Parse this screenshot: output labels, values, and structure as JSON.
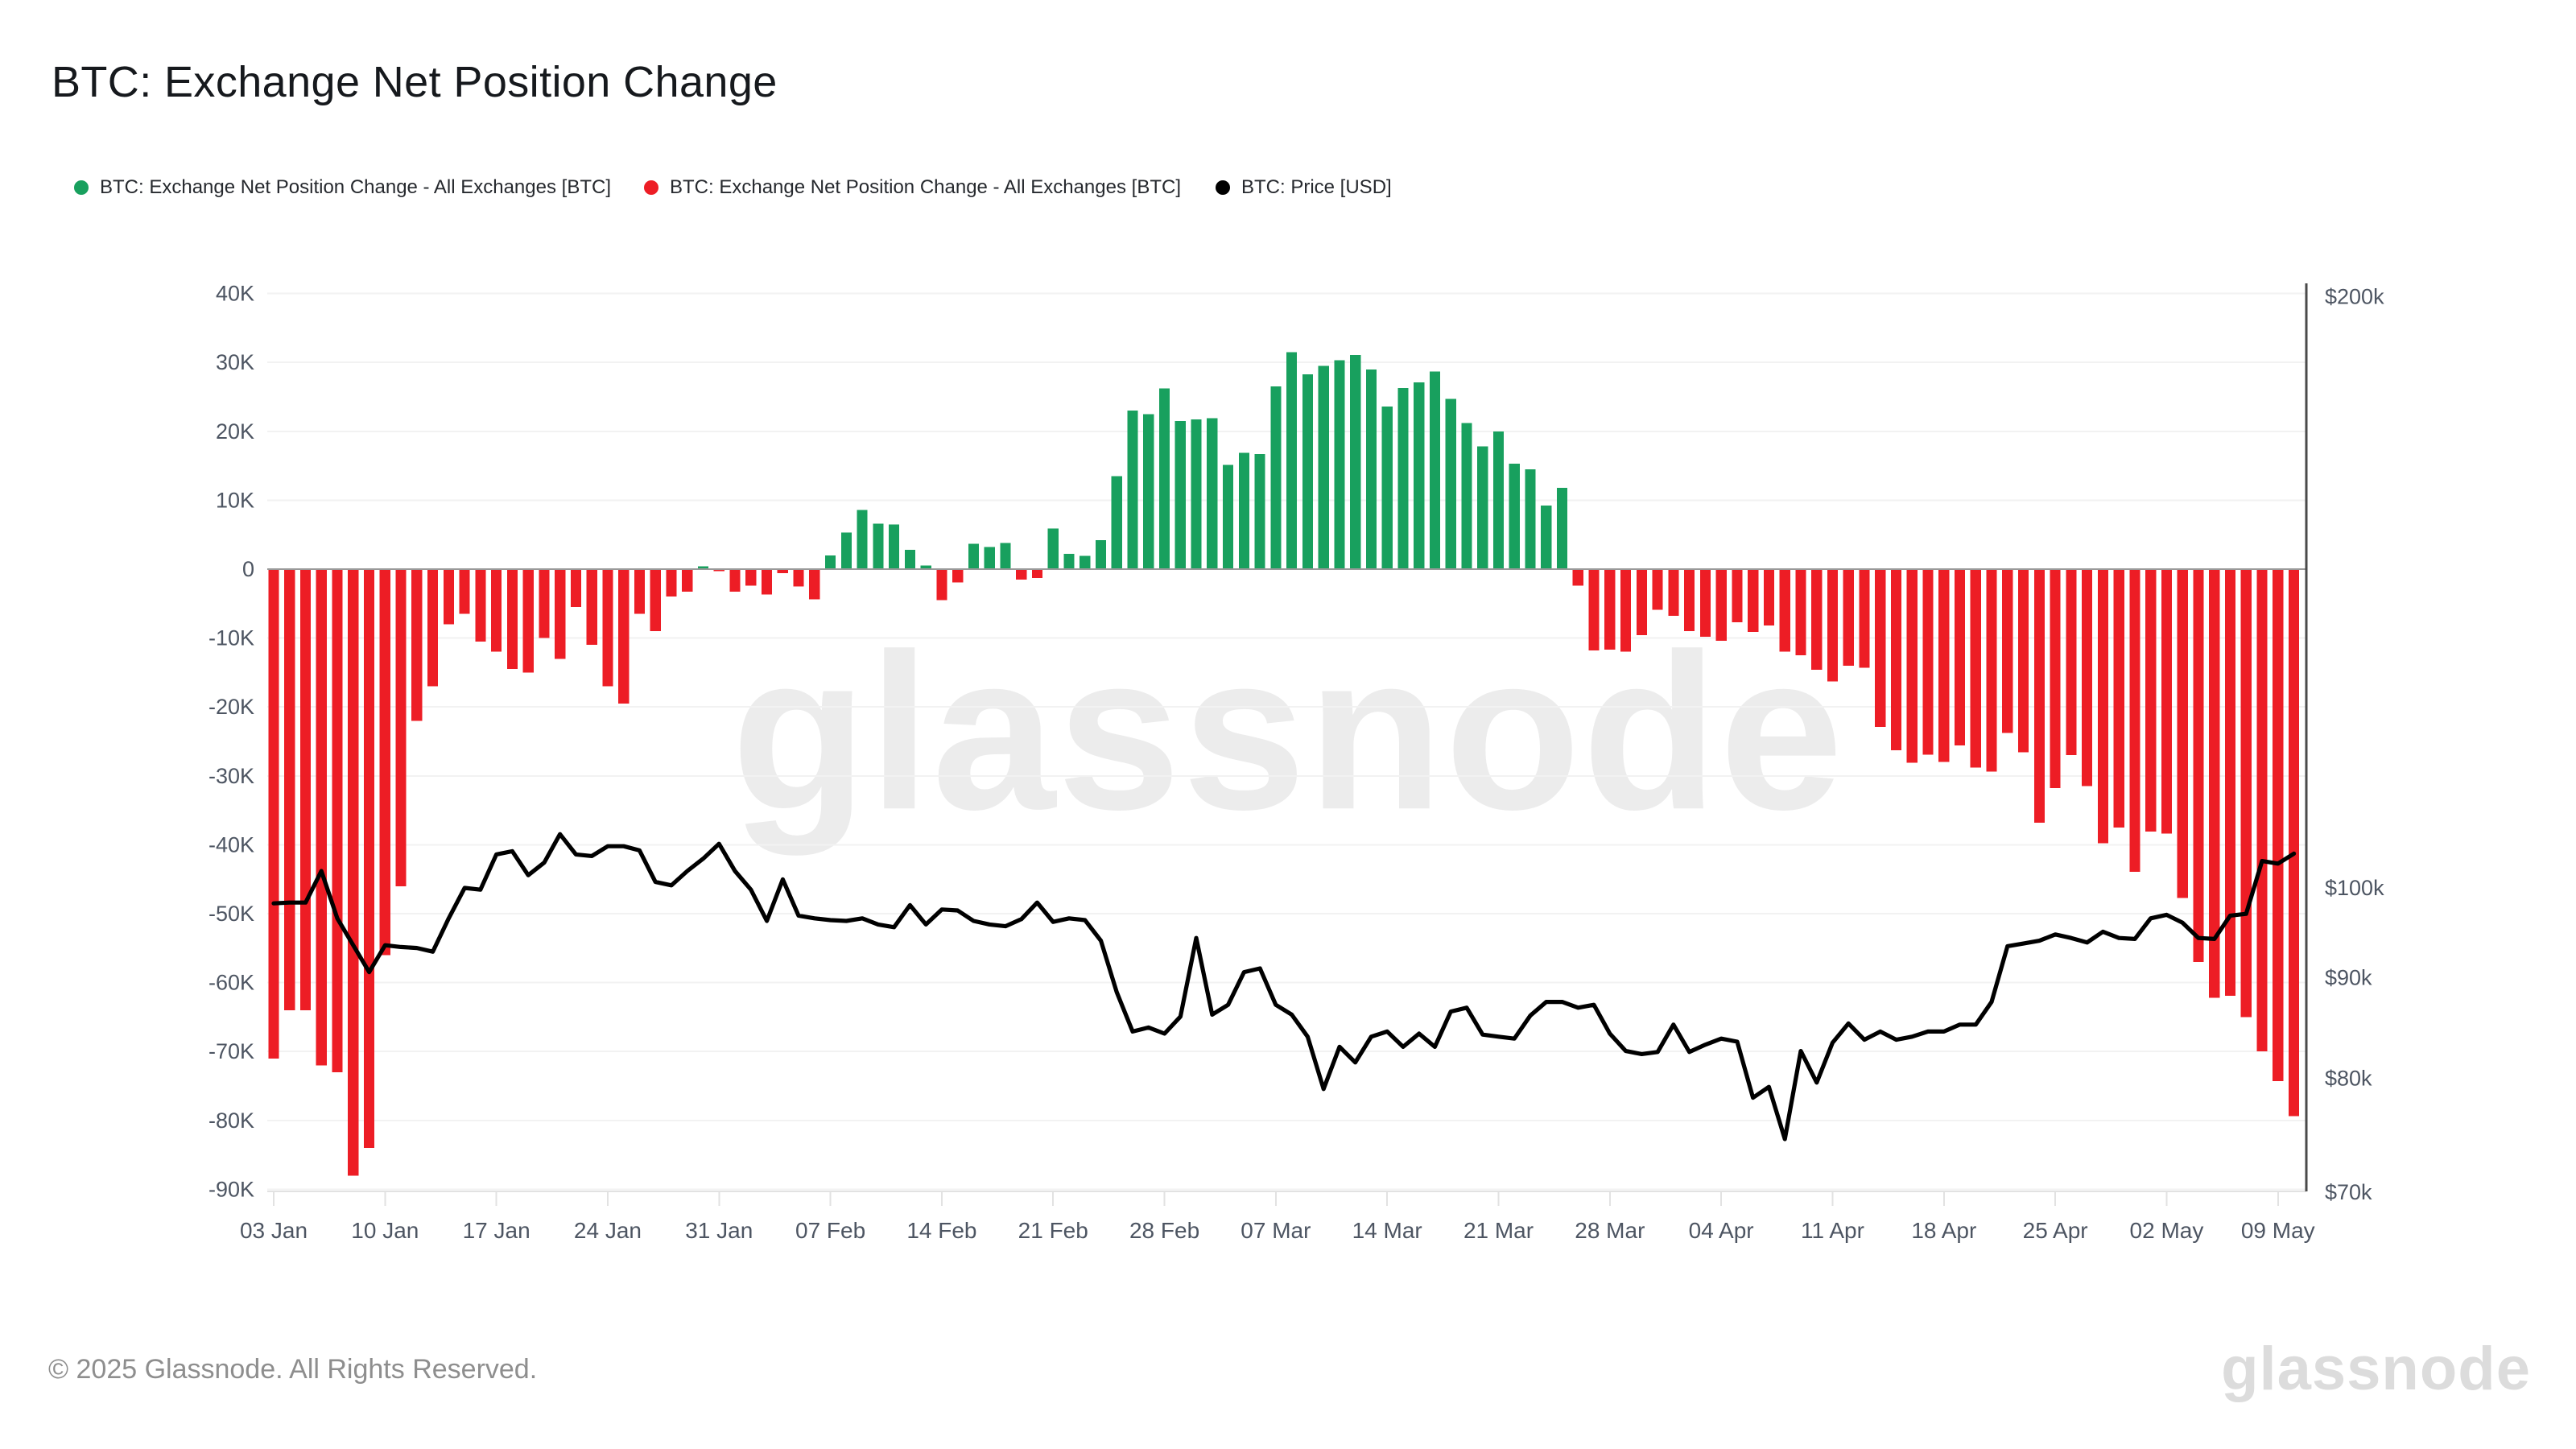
{
  "header": {
    "title": "BTC: Exchange Net Position Change"
  },
  "legend": {
    "items": [
      {
        "label": "BTC: Exchange Net Position Change - All Exchanges [BTC]",
        "color": "#18a05e"
      },
      {
        "label": "BTC: Exchange Net Position Change - All Exchanges [BTC]",
        "color": "#ed1d25"
      },
      {
        "label": "BTC: Price [USD]",
        "color": "#000000"
      }
    ]
  },
  "watermark": "glassnode",
  "footer": {
    "copyright": "© 2025 Glassnode. All Rights Reserved.",
    "brand": "glassnode"
  },
  "colors": {
    "positive_bar": "#18a05e",
    "negative_bar": "#ed1d25",
    "price_line": "#000000",
    "axis_text": "#4d5562",
    "gridline": "#f2f2f2",
    "zero_line": "#999999",
    "right_axis_line": "#4a4a4a",
    "bottom_axis_line": "#e2e2e2"
  },
  "chart_data": {
    "type": "bar",
    "title": "BTC: Exchange Net Position Change",
    "start_date": "03 Jan 2025",
    "cadence": "daily",
    "x_tick_labels": [
      "03 Jan",
      "10 Jan",
      "17 Jan",
      "24 Jan",
      "31 Jan",
      "07 Feb",
      "14 Feb",
      "21 Feb",
      "28 Feb",
      "07 Mar",
      "14 Mar",
      "21 Mar",
      "28 Mar",
      "04 Apr",
      "11 Apr",
      "18 Apr",
      "25 Apr",
      "02 May",
      "09 May"
    ],
    "x_tick_day_indices": [
      0,
      7,
      14,
      21,
      28,
      35,
      42,
      49,
      56,
      63,
      70,
      77,
      84,
      91,
      98,
      105,
      112,
      119,
      126
    ],
    "left_axis": {
      "unit": "BTC (thousands)",
      "tick_labels": [
        "40K",
        "30K",
        "20K",
        "10K",
        "0",
        "-10K",
        "-20K",
        "-30K",
        "-40K",
        "-50K",
        "-60K",
        "-70K",
        "-80K",
        "-90K"
      ],
      "tick_values": [
        40,
        30,
        20,
        10,
        0,
        -10,
        -20,
        -30,
        -40,
        -50,
        -60,
        -70,
        -80,
        -90
      ],
      "range": [
        -93,
        41
      ]
    },
    "right_axis": {
      "unit": "USD (thousands)",
      "scale": "log",
      "tick_labels": [
        "$200k",
        "$100k",
        "$90k",
        "$80k",
        "$70k"
      ],
      "tick_values": [
        200,
        100,
        90,
        80,
        70
      ]
    },
    "grid": "horizontal-only",
    "legend_position": "top",
    "series": [
      {
        "name": "BTC: Exchange Net Position Change - All Exchanges [BTC]",
        "type": "bar",
        "axis": "left",
        "values_unit": "K BTC",
        "values": [
          -71,
          -64,
          -64,
          -72,
          -73,
          -88,
          -84,
          -56,
          -46,
          -22,
          -17,
          -8,
          -6.5,
          -10.5,
          -12,
          -14.5,
          -15,
          -10,
          -13,
          -5.5,
          -11,
          -17,
          -19.5,
          -6.5,
          -9,
          -4,
          -3.3,
          0.4,
          -0.3,
          -3.3,
          -2.4,
          -3.7,
          -0.6,
          -2.5,
          -4.4,
          2,
          5.3,
          8.6,
          6.6,
          6.5,
          2.8,
          0.5,
          -4.5,
          -1.9,
          3.7,
          3.2,
          3.8,
          -1.5,
          -1.3,
          5.9,
          2.2,
          1.9,
          4.2,
          13.5,
          23,
          22.5,
          26.2,
          21.5,
          21.7,
          21.9,
          15.1,
          16.9,
          16.7,
          26.5,
          31.5,
          28.3,
          29.5,
          30.3,
          31.1,
          29,
          23.6,
          26.3,
          27.1,
          28.7,
          24.7,
          21.2,
          17.8,
          20,
          15.3,
          14.5,
          9.2,
          11.8,
          -2.4,
          -11.8,
          -11.7,
          -12,
          -9.6,
          -5.9,
          -6.8,
          -9,
          -9.8,
          -10.4,
          -7.7,
          -9.1,
          -8.2,
          -12,
          -12.5,
          -14.6,
          -16.3,
          -14,
          -14.3,
          -22.9,
          -26.3,
          -28.1,
          -26.9,
          -28,
          -25.6,
          -28.8,
          -29.4,
          -23.8,
          -26.6,
          -36.8,
          -31.8,
          -27,
          -31.5,
          -39.8,
          -37.5,
          -43.9,
          -38.1,
          -38.4,
          -47.7,
          -57,
          -62.2,
          -61.9,
          -65,
          -70,
          -74.3,
          -79.4
        ]
      },
      {
        "name": "BTC: Price [USD]",
        "type": "line",
        "axis": "right",
        "values_unit": "$k",
        "values": [
          98.2,
          98.3,
          98.3,
          102,
          96.5,
          93.5,
          90.6,
          93.5,
          93.3,
          93.2,
          92.8,
          96.5,
          100,
          99.8,
          104,
          104.4,
          101.5,
          103,
          106.5,
          104,
          103.8,
          105,
          105,
          104.5,
          100.7,
          100.3,
          102,
          103.5,
          105.3,
          102,
          99.8,
          96.2,
          101,
          96.8,
          96.5,
          96.3,
          96.2,
          96.5,
          95.8,
          95.5,
          98,
          95.8,
          97.5,
          97.4,
          96.2,
          95.8,
          95.6,
          96.4,
          98.3,
          96.1,
          96.5,
          96.3,
          94,
          88.5,
          84.5,
          84.9,
          84.3,
          86,
          94.3,
          86.2,
          87.2,
          90.6,
          91,
          87.2,
          86.2,
          84,
          79,
          83,
          81.5,
          84,
          84.5,
          83,
          84.3,
          83,
          86.5,
          86.9,
          84.2,
          84,
          83.8,
          86.1,
          87.5,
          87.5,
          86.9,
          87.2,
          84.3,
          82.6,
          82.3,
          82.5,
          85.2,
          82.5,
          83.2,
          83.8,
          83.5,
          78.2,
          79.2,
          74.5,
          82.6,
          79.6,
          83.4,
          85.3,
          83.7,
          84.5,
          83.7,
          84,
          84.5,
          84.5,
          85.2,
          85.2,
          87.5,
          93.4,
          93.7,
          94,
          94.7,
          94.3,
          93.8,
          95,
          94.3,
          94.2,
          96.5,
          96.9,
          96,
          94.3,
          94.2,
          96.8,
          97,
          103.2,
          102.9,
          104.1
        ]
      }
    ]
  }
}
